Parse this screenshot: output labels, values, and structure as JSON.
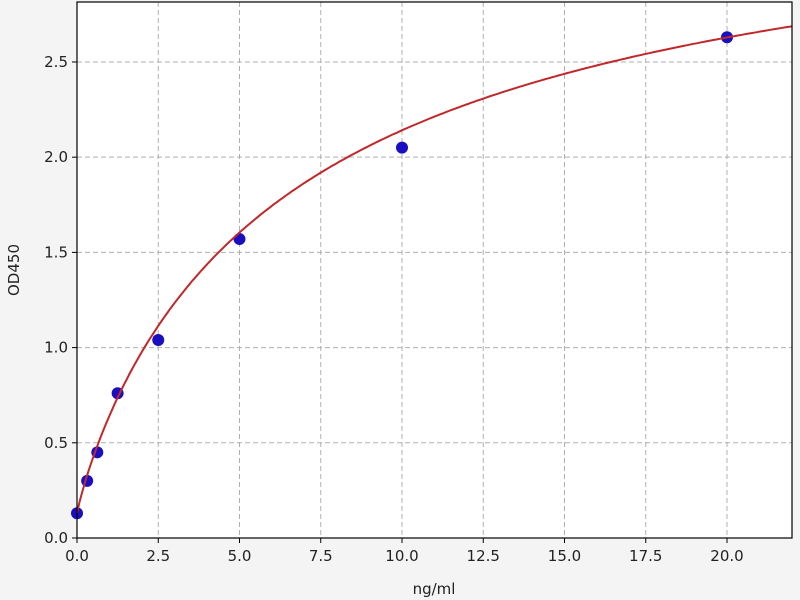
{
  "chart_data": {
    "type": "scatter",
    "title": "",
    "xlabel": "ng/ml",
    "ylabel": "OD450",
    "xlim": [
      0,
      22
    ],
    "ylim": [
      0,
      2.815
    ],
    "grid": true,
    "x_ticks": [
      "0.0",
      "2.5",
      "5.0",
      "7.5",
      "10.0",
      "12.5",
      "15.0",
      "17.5",
      "20.0"
    ],
    "y_ticks": [
      "0.0",
      "0.5",
      "1.0",
      "1.5",
      "2.0",
      "2.5"
    ],
    "points": {
      "x": [
        0,
        0.3125,
        0.625,
        1.25,
        2.5,
        5,
        10,
        20
      ],
      "y": [
        0.13,
        0.3,
        0.45,
        0.76,
        1.04,
        1.57,
        2.05,
        2.63
      ],
      "color": "#1a0fc0"
    },
    "fit_curve": {
      "model": "four-parameter logistic",
      "a": 0.13,
      "b": 0.9,
      "c": 7,
      "d": 3.6,
      "color": "#c0282a"
    },
    "background": "#ffffff",
    "grid_color": "#b0b0b0"
  }
}
